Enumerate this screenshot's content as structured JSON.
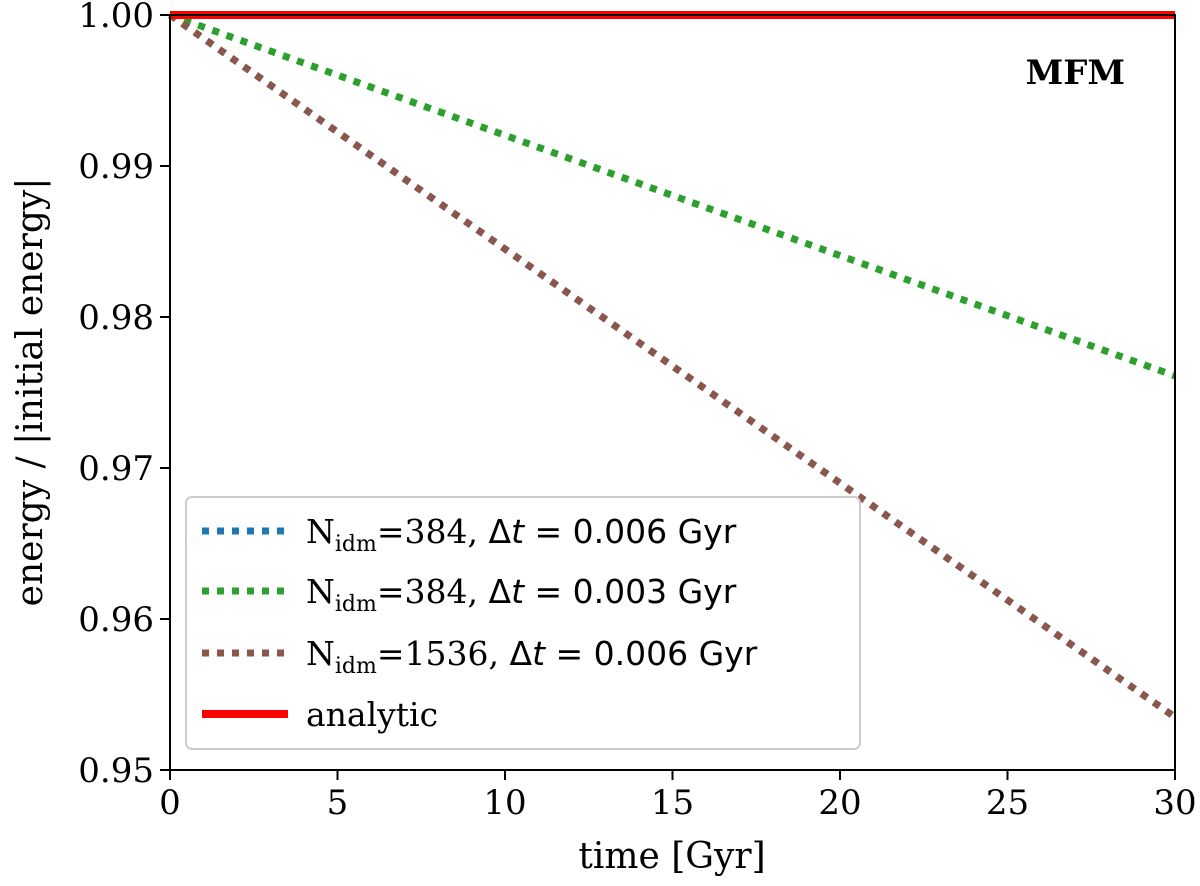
{
  "chart_data": {
    "type": "line",
    "title": "",
    "annotation": "MFM",
    "xlabel": "time [Gyr]",
    "ylabel": "energy / |initial energy|",
    "xlim": [
      0,
      30
    ],
    "ylim": [
      0.95,
      1.0
    ],
    "xticks": [
      0,
      5,
      10,
      15,
      20,
      25,
      30
    ],
    "xtick_labels": [
      "0",
      "5",
      "10",
      "15",
      "20",
      "25",
      "30"
    ],
    "yticks": [
      0.95,
      0.96,
      0.97,
      0.98,
      0.99,
      1.0
    ],
    "ytick_labels": [
      "0.95",
      "0.96",
      "0.97",
      "0.98",
      "0.99",
      "1.00"
    ],
    "grid": false,
    "legend_position": "lower-left",
    "series": [
      {
        "key": "n384_dt006",
        "label_prefix": "N",
        "label_sub": "idm",
        "label_n": "=384, ",
        "label_delta": "Δ",
        "label_t": "t",
        "label_eq": " = 0.006",
        "label_unit": " Gyr",
        "color": "#1f77b4",
        "style": "dotted",
        "x": [
          0,
          30
        ],
        "y": [
          1.0,
          0.9535
        ]
      },
      {
        "key": "n384_dt003",
        "label_prefix": "N",
        "label_sub": "idm",
        "label_n": "=384, ",
        "label_delta": "Δ",
        "label_t": "t",
        "label_eq": " = 0.003",
        "label_unit": " Gyr",
        "color": "#2ca02c",
        "style": "dotted",
        "x": [
          0,
          30
        ],
        "y": [
          1.0,
          0.9761
        ]
      },
      {
        "key": "n1536_dt006",
        "label_prefix": "N",
        "label_sub": "idm",
        "label_n": "=1536, ",
        "label_delta": "Δ",
        "label_t": "t",
        "label_eq": " = 0.006",
        "label_unit": " Gyr",
        "color": "#8c564b",
        "style": "dotted",
        "x": [
          0,
          30
        ],
        "y": [
          1.0,
          0.9535
        ]
      },
      {
        "key": "analytic",
        "label_text": "analytic",
        "color": "#ff0000",
        "style": "solid",
        "x": [
          0,
          30
        ],
        "y": [
          1.0,
          1.0
        ]
      }
    ]
  }
}
